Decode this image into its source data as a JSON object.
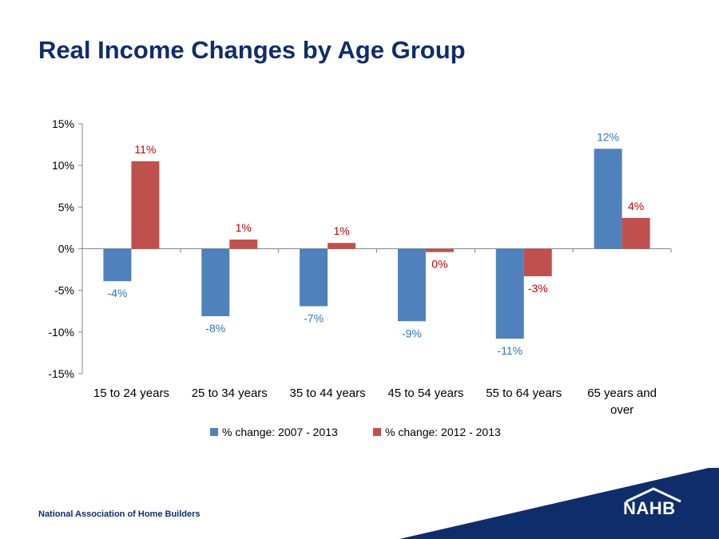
{
  "slide": {
    "title": "Real Income Changes by Age Group",
    "footer": "National Association of Home Builders",
    "logo_text": "NAHB"
  },
  "colors": {
    "title": "#0f2d6b",
    "series1": "#4f81bd",
    "series2": "#c0504d",
    "label1": "#2e75b6",
    "label2": "#c00000",
    "banner": "#0f2d6b"
  },
  "chart_data": {
    "type": "bar",
    "categories": [
      "15 to 24 years",
      "25 to 34 years",
      "35 to 44 years",
      "45 to 54 years",
      "55 to 64 years",
      "65 years and over"
    ],
    "series": [
      {
        "name": "% change: 2007 - 2013",
        "values": [
          -3.9,
          -8.1,
          -6.9,
          -8.7,
          -10.8,
          12.0
        ],
        "labels": [
          "-4%",
          "-8%",
          "-7%",
          "-9%",
          "-11%",
          "12%"
        ]
      },
      {
        "name": "% change: 2012 - 2013",
        "values": [
          10.5,
          1.1,
          0.7,
          -0.4,
          -3.3,
          3.7
        ],
        "labels": [
          "11%",
          "1%",
          "1%",
          "0%",
          "-3%",
          "4%"
        ]
      }
    ],
    "ylim": [
      -15,
      15
    ],
    "yticks": [
      -15,
      -10,
      -5,
      0,
      5,
      10,
      15
    ],
    "ytick_labels": [
      "-15%",
      "-10%",
      "-5%",
      "0%",
      "5%",
      "10%",
      "15%"
    ],
    "grid": false,
    "legend_position": "bottom"
  }
}
